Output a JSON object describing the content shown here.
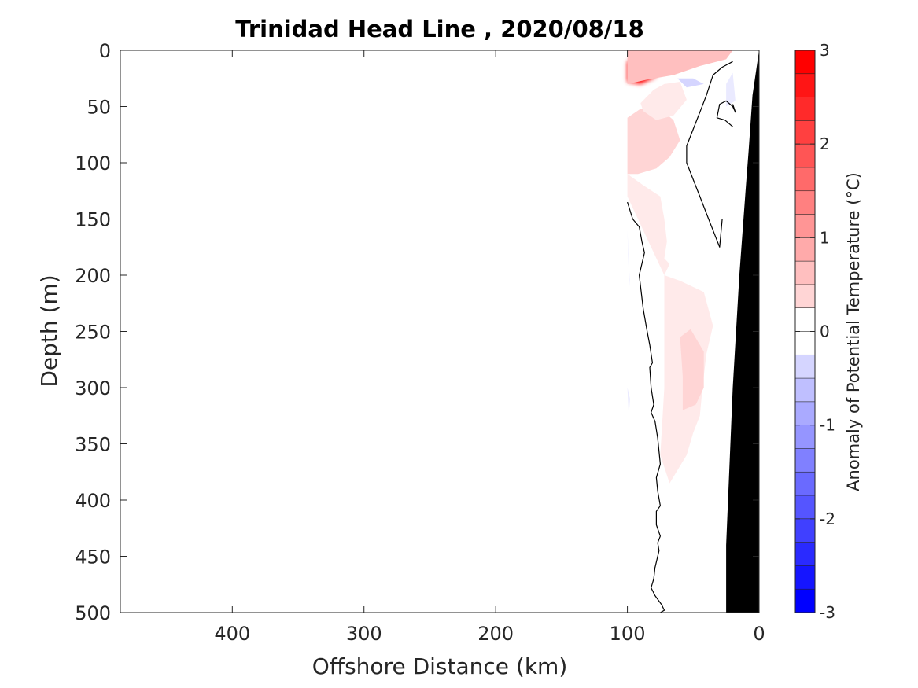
{
  "chart_data": {
    "type": "contour",
    "title": "Trinidad Head Line , 2020/08/18",
    "xlabel": "Offshore Distance (km)",
    "ylabel": "Depth (m)",
    "x_reversed": true,
    "y_reversed": true,
    "xlim": [
      485,
      0
    ],
    "ylim": [
      0,
      500
    ],
    "x_ticks": [
      400,
      300,
      200,
      100,
      0
    ],
    "y_ticks": [
      0,
      50,
      100,
      150,
      200,
      250,
      300,
      350,
      400,
      450,
      500
    ],
    "x_tick_labels": [
      "400",
      "300",
      "200",
      "100",
      "0"
    ],
    "y_tick_labels": [
      "0",
      "50",
      "100",
      "150",
      "200",
      "250",
      "300",
      "350",
      "400",
      "450",
      "500"
    ],
    "colorbar": {
      "label": "Anomaly of Potential Temperature (°C)",
      "range": [
        -3,
        3
      ],
      "step": 0.25,
      "ticks": [
        3,
        2,
        1,
        0,
        -1,
        -2,
        -3
      ],
      "tick_labels": [
        "3",
        "2",
        "1",
        "0",
        "-1",
        "-2",
        "-3"
      ],
      "positive_color": "#ff0000",
      "negative_color": "#0000ff",
      "neutral_color": "#ffffff"
    },
    "anomaly_patches": [
      {
        "x": [
          100,
          92,
          80,
          75,
          79,
          90,
          100
        ],
        "y": [
          10,
          7,
          8,
          15,
          24,
          30,
          28
        ],
        "value": 3.0
      },
      {
        "x": [
          100,
          90,
          70,
          55,
          35,
          20,
          25,
          45,
          65,
          85,
          100
        ],
        "y": [
          0,
          0,
          0,
          0,
          0,
          0,
          8,
          14,
          22,
          26,
          30
        ],
        "value": 0.75
      },
      {
        "x": [
          100,
          90,
          75,
          65,
          60,
          68,
          78,
          92,
          100
        ],
        "y": [
          60,
          52,
          52,
          62,
          80,
          95,
          105,
          110,
          110
        ],
        "value": 0.5
      },
      {
        "x": [
          100,
          88,
          75,
          72,
          70,
          72,
          68,
          72,
          82,
          92,
          100
        ],
        "y": [
          110,
          120,
          130,
          150,
          170,
          185,
          190,
          200,
          175,
          150,
          130
        ],
        "value": 0.25
      },
      {
        "x": [
          72,
          60,
          42,
          35,
          40,
          43,
          45,
          50,
          55,
          68,
          75,
          72
        ],
        "y": [
          200,
          205,
          215,
          245,
          270,
          300,
          325,
          340,
          360,
          385,
          360,
          300
        ],
        "value": 0.25
      },
      {
        "x": [
          60,
          52,
          42,
          42,
          48,
          58,
          58
        ],
        "y": [
          255,
          248,
          268,
          300,
          315,
          320,
          290
        ],
        "value": 0.5
      },
      {
        "x": [
          90,
          80,
          72,
          60,
          55,
          65,
          78,
          88
        ],
        "y": [
          47,
          35,
          30,
          28,
          44,
          58,
          62,
          54
        ],
        "value": 0.25
      },
      {
        "x": [
          62,
          50,
          42,
          55
        ],
        "y": [
          25,
          25,
          30,
          33
        ],
        "value": -0.5
      },
      {
        "x": [
          25,
          20,
          18,
          25
        ],
        "y": [
          30,
          20,
          45,
          50
        ],
        "value": -0.25
      },
      {
        "x": [
          100,
          99,
          98
        ],
        "y": [
          160,
          200,
          210
        ],
        "value": -0.25
      },
      {
        "x": [
          100,
          98,
          99
        ],
        "y": [
          300,
          310,
          325
        ],
        "value": -0.25
      }
    ],
    "zero_contours": [
      {
        "x": [
          100,
          96,
          91,
          89,
          87,
          91,
          88,
          85,
          83,
          81,
          83,
          82,
          80,
          82,
          79,
          77,
          75,
          78,
          77,
          75,
          78,
          78,
          75,
          77,
          76,
          79,
          80,
          82,
          79,
          74,
          72,
          75
        ],
        "y": [
          135,
          150,
          157,
          170,
          180,
          200,
          230,
          250,
          262,
          278,
          282,
          300,
          315,
          322,
          330,
          345,
          368,
          380,
          392,
          405,
          410,
          422,
          432,
          438,
          445,
          460,
          470,
          478,
          485,
          493,
          498,
          500
        ]
      },
      {
        "x": [
          20,
          28,
          35,
          40,
          45,
          50,
          55,
          55,
          50,
          45,
          40,
          35,
          30,
          28
        ],
        "y": [
          10,
          15,
          22,
          40,
          55,
          70,
          85,
          100,
          115,
          130,
          145,
          160,
          175,
          150
        ]
      },
      {
        "x": [
          20,
          26,
          32,
          30,
          25,
          20,
          18,
          20
        ],
        "y": [
          68,
          62,
          60,
          48,
          45,
          50,
          55,
          48
        ]
      }
    ],
    "bathymetry": {
      "x": [
        0,
        5,
        8,
        10,
        15,
        20,
        25,
        25
      ],
      "y": [
        0,
        40,
        90,
        120,
        200,
        300,
        440,
        500
      ]
    }
  }
}
